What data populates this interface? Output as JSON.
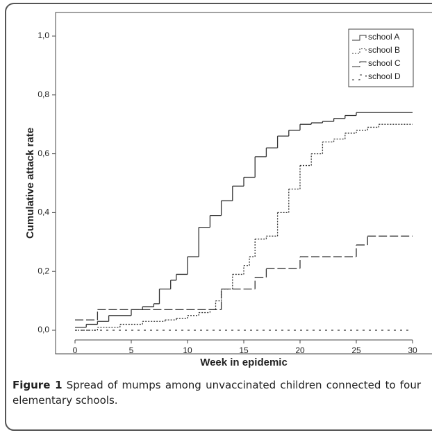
{
  "chart_data": {
    "type": "step",
    "ylabel": "Cumulative attack rate",
    "xlabel": "Week in epidemic",
    "caption_label": "Figure 1",
    "caption": "Spread of mumps among unvaccinated children connected to four elementary schools.",
    "xlim": [
      0,
      30
    ],
    "xticks": [
      0,
      5,
      10,
      15,
      20,
      25,
      30
    ],
    "ylim": [
      0,
      1
    ],
    "yticks": [
      {
        "value": 0,
        "label": "0,0"
      },
      {
        "value": 0.2,
        "label": "0,2"
      },
      {
        "value": 0.4,
        "label": "0,4"
      },
      {
        "value": 0.6,
        "label": "0,6"
      },
      {
        "value": 0.8,
        "label": "0,8"
      },
      {
        "value": 1,
        "label": "1,0"
      }
    ],
    "legend": "upper right",
    "series": [
      {
        "name": "school A",
        "color": "#333333",
        "style": "solid",
        "x": [
          0,
          1,
          2,
          3,
          5,
          6,
          7,
          7.5,
          8.5,
          9,
          10,
          11,
          12,
          13,
          14,
          15,
          16,
          17,
          18,
          19,
          20,
          21,
          22,
          23,
          24,
          25,
          30
        ],
        "values": [
          0.01,
          0.02,
          0.03,
          0.05,
          0.07,
          0.08,
          0.09,
          0.14,
          0.17,
          0.19,
          0.25,
          0.35,
          0.39,
          0.44,
          0.49,
          0.52,
          0.59,
          0.62,
          0.66,
          0.68,
          0.7,
          0.705,
          0.71,
          0.72,
          0.73,
          0.74,
          0.74
        ]
      },
      {
        "name": "school B",
        "color": "#333333",
        "style": "dotted",
        "x": [
          0,
          2,
          4,
          6,
          8,
          9,
          10,
          11,
          12,
          12.5,
          13,
          14,
          15,
          15.5,
          16,
          17,
          18,
          19,
          20,
          21,
          22,
          23,
          24,
          25,
          26,
          27,
          30
        ],
        "values": [
          0,
          0.01,
          0.02,
          0.03,
          0.035,
          0.04,
          0.05,
          0.06,
          0.07,
          0.1,
          0.14,
          0.19,
          0.22,
          0.25,
          0.31,
          0.32,
          0.4,
          0.48,
          0.56,
          0.6,
          0.64,
          0.65,
          0.67,
          0.68,
          0.69,
          0.7,
          0.7
        ]
      },
      {
        "name": "school C",
        "color": "#333333",
        "style": "dashed",
        "x": [
          0,
          2,
          13,
          16,
          17,
          20,
          25,
          26,
          30
        ],
        "values": [
          0.035,
          0.07,
          0.14,
          0.18,
          0.21,
          0.25,
          0.29,
          0.32,
          0.32
        ]
      },
      {
        "name": "school D",
        "color": "#333333",
        "style": "dash-dot",
        "x": [
          0,
          30
        ],
        "values": [
          0,
          0
        ]
      }
    ]
  }
}
